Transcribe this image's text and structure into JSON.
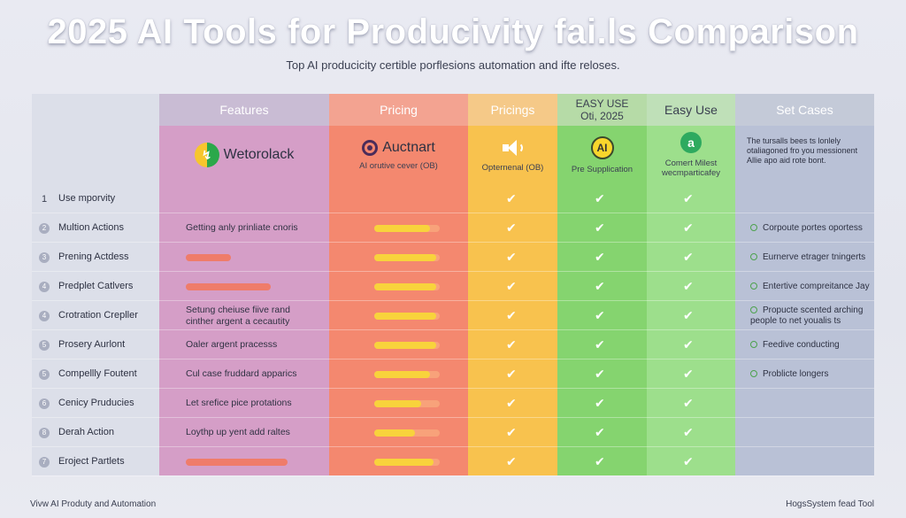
{
  "header": {
    "title": "2025 AI Tools for Producivity fai.ls Comparison",
    "subtitle": "Top AI producicity certible porflesions automation and ifte reloses."
  },
  "columns": [
    {
      "label": "Features"
    },
    {
      "label": "Pricing"
    },
    {
      "label": "Pricings"
    },
    {
      "label": "EASY USE\nOti, 2025"
    },
    {
      "label": "Easy Use"
    },
    {
      "label": "Set Cases"
    }
  ],
  "brands": [
    {
      "name": "Wetorolack",
      "sub": "",
      "icon": "wetorolack-logo-icon"
    },
    {
      "name": "Auctnart",
      "sub": "AI orutive cever (OB)",
      "icon": "auctnart-logo-icon"
    },
    {
      "name": "",
      "sub": "Opternenal (OB)",
      "icon": "speaker-icon"
    },
    {
      "name": "",
      "sub": "Pre Supplication",
      "icon": "ai-badge-icon",
      "badge": "AI"
    },
    {
      "name": "",
      "sub": "Comert Milest wecmparticafey",
      "icon": "a-logo-icon",
      "badge": "a"
    }
  ],
  "set_note": "The tursalls bees ts lonlely otaliagoned fro you messionent Allie apo aid rote bont.",
  "rows": [
    {
      "num": "1",
      "label": "Use mporvity",
      "feature": "",
      "pink": 0,
      "price": null,
      "checks": [
        1,
        1,
        1
      ],
      "set": ""
    },
    {
      "num": "2",
      "label": "Multion Actions",
      "feature": "Getting anly prinliate cnoris",
      "pink": 0,
      "price": 0.85,
      "checks": [
        1,
        1,
        1
      ],
      "set": "Corpoute portes oportess"
    },
    {
      "num": "3",
      "label": "Prening Actdess",
      "feature": "",
      "pink": 0.32,
      "price": 0.95,
      "checks": [
        1,
        1,
        1
      ],
      "set": "Eurnerve etrager tningerts"
    },
    {
      "num": "4",
      "label": "Predplet Catlvers",
      "feature": "",
      "pink": 0.6,
      "price": 0.95,
      "checks": [
        1,
        1,
        1
      ],
      "set": "Entertive compreitance Jay"
    },
    {
      "num": "4",
      "label": "Crotration Crepller",
      "feature": "Setung cheiuse fiive rand cinther argent a cecautity",
      "pink": 0,
      "price": 0.95,
      "checks": [
        1,
        1,
        1
      ],
      "set": "Propucte scented arching people to net youalis ts"
    },
    {
      "num": "5",
      "label": "Prosery Aurlont",
      "feature": "Oaler argent pracesss",
      "pink": 0,
      "price": 0.95,
      "checks": [
        1,
        1,
        1
      ],
      "set": "Feedive conducting"
    },
    {
      "num": "5",
      "label": "Compellly Foutent",
      "feature": "Cul case fruddard apparics",
      "pink": 0,
      "price": 0.85,
      "checks": [
        1,
        1,
        1
      ],
      "set": "Problicte longers"
    },
    {
      "num": "6",
      "label": "Cenicy Pruducies",
      "feature": "Let srefice pice protations",
      "pink": 0,
      "price": 0.72,
      "checks": [
        1,
        1,
        1
      ],
      "set": ""
    },
    {
      "num": "8",
      "label": "Derah Action",
      "feature": "Loythp up yent add raltes",
      "pink": 0,
      "price": 0.62,
      "checks": [
        1,
        1,
        1
      ],
      "set": ""
    },
    {
      "num": "7",
      "label": "Eroject Partlets",
      "feature": "",
      "pink": 0.72,
      "price": 0.9,
      "checks": [
        1,
        1,
        1
      ],
      "set": ""
    }
  ],
  "footer": {
    "left": "Vivw AI Produty and Automation",
    "right": "HogsSystem fead Tool"
  }
}
